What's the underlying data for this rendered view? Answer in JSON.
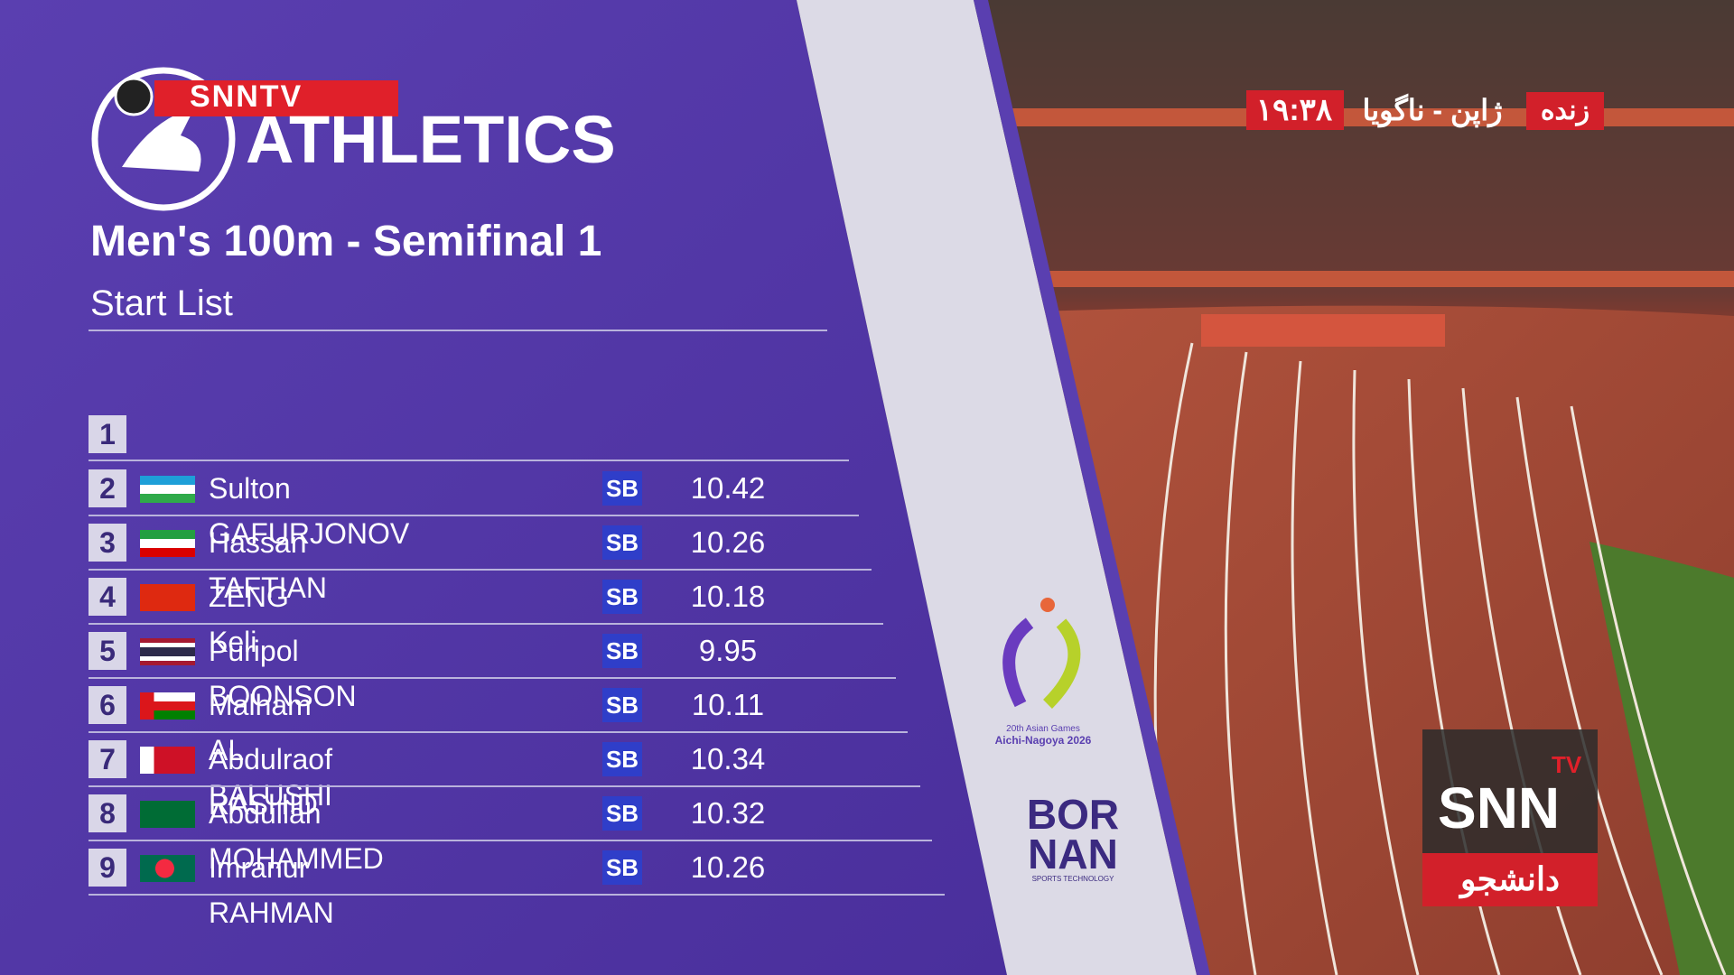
{
  "header": {
    "brand": "SNNTV",
    "sport": "ATHLETICS",
    "event": "Men's 100m - Semifinal 1",
    "subtitle": "Start List"
  },
  "live": {
    "label": "زنده",
    "location": "ژاپن - ناگویا",
    "time": "۱۹:۳۸"
  },
  "start_list": {
    "empty_lane": "1",
    "rows": [
      {
        "lane": "2",
        "athlete": "Sulton GAFURJONOV",
        "mark_type": "SB",
        "time": "10.42"
      },
      {
        "lane": "3",
        "athlete": "Hassan TAFTIAN",
        "mark_type": "SB",
        "time": "10.26"
      },
      {
        "lane": "4",
        "athlete": "ZENG Keli",
        "mark_type": "SB",
        "time": "10.18"
      },
      {
        "lane": "5",
        "athlete": "Puripol BOONSON",
        "mark_type": "SB",
        "time": "9.95"
      },
      {
        "lane": "6",
        "athlete": "Malham AL BALUSHI",
        "mark_type": "SB",
        "time": "10.11"
      },
      {
        "lane": "7",
        "athlete": "Abdulraof RASHID",
        "mark_type": "SB",
        "time": "10.34"
      },
      {
        "lane": "8",
        "athlete": "Abdullah MOHAMMED",
        "mark_type": "SB",
        "time": "10.32"
      },
      {
        "lane": "9",
        "athlete": "Imranur RAHMAN",
        "mark_type": "SB",
        "time": "10.26"
      }
    ]
  },
  "sponsors": {
    "games": "20th Asian Games",
    "host": "Aichi-Nagoya 2026",
    "tech_line1": "BOR",
    "tech_line2": "NAN",
    "tech_tagline": "SPORTS TECHNOLOGY"
  },
  "logo": {
    "main": "SNN",
    "tv": "TV",
    "partner": "دانشجو"
  }
}
